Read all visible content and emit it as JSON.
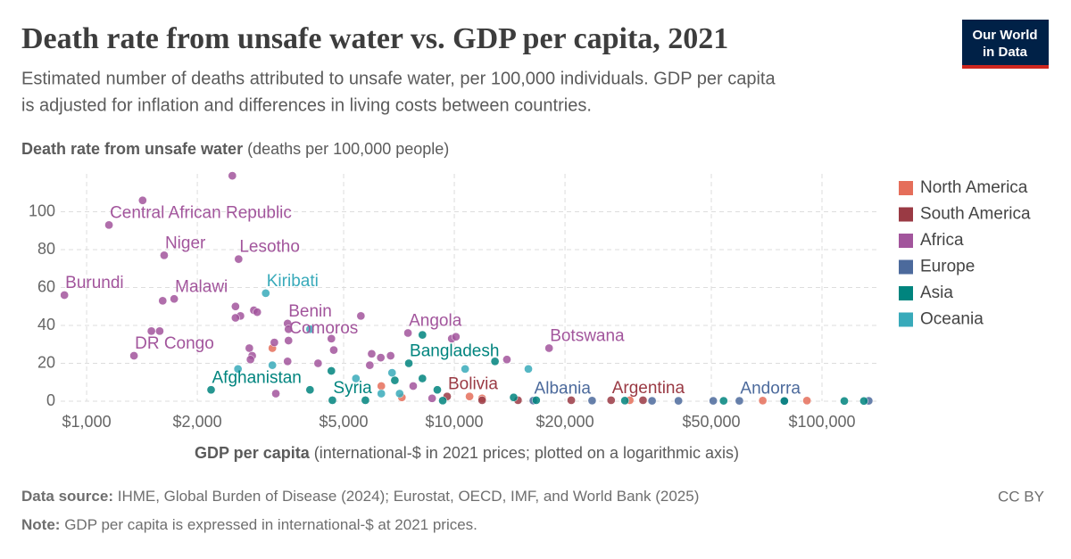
{
  "logo": [
    "Our World",
    "in Data"
  ],
  "chart_data": {
    "type": "scatter",
    "title": "Death rate from unsafe water vs. GDP per capita, 2021",
    "subtitle": [
      "Estimated number of deaths attributed to unsafe water, per 100,000 individuals. GDP per capita",
      "is adjusted for inflation and differences in living costs between countries."
    ],
    "y_label": "Death rate from unsafe water",
    "y_label_unit": "(deaths per 100,000 people)",
    "x_label": "GDP per capita",
    "x_label_unit": "(international-$ in 2021 prices; plotted on a logarithmic axis)",
    "x_log": true,
    "grid": true,
    "legend": "right",
    "xlim": [
      850,
      143000
    ],
    "xticks": [
      {
        "value": 1000,
        "label": "$1,000"
      },
      {
        "value": 2000,
        "label": "$2,000"
      },
      {
        "value": 5000,
        "label": "$5,000"
      },
      {
        "value": 10000,
        "label": "$10,000"
      },
      {
        "value": 20000,
        "label": "$20,000"
      },
      {
        "value": 50000,
        "label": "$50,000"
      },
      {
        "value": 100000,
        "label": "$100,000"
      }
    ],
    "ylim": [
      0,
      120
    ],
    "yticks": [
      0,
      20,
      40,
      60,
      80,
      100
    ],
    "series": [
      {
        "name": "North America",
        "color": "#e56e5a",
        "x": [
          3200,
          6330,
          7200,
          11000,
          11900,
          30000,
          69000,
          91000
        ],
        "values": [
          28,
          8,
          2,
          2.5,
          1.5,
          0.5,
          0.3,
          0.3
        ],
        "labels": [
          null,
          null,
          null,
          null,
          null,
          null,
          null,
          null
        ]
      },
      {
        "name": "South America",
        "color": "#9a3a44",
        "x": [
          9560,
          11900,
          14900,
          20800,
          26700,
          32600
        ],
        "values": [
          2.5,
          0.5,
          0.5,
          0.5,
          0.5,
          0.5
        ],
        "labels": [
          "Bolivia",
          null,
          null,
          null,
          "Argentina",
          null
        ]
      },
      {
        "name": "Africa",
        "color": "#a2559c",
        "x": [
          870,
          1150,
          1420,
          1625,
          2490,
          2590,
          1730,
          1610,
          1500,
          1580,
          1345,
          2850,
          2540,
          2620,
          2540,
          2910,
          3520,
          3540,
          5570,
          2770,
          2820,
          2790,
          3240,
          3520,
          4260,
          3540,
          4630,
          4700,
          5960,
          6310,
          6710,
          5890,
          7480,
          9840,
          10100,
          7730,
          8700,
          18100,
          13900,
          3270
        ],
        "values": [
          56,
          93,
          106,
          77,
          119,
          75,
          54,
          53,
          37,
          37,
          24,
          48,
          50,
          45,
          44,
          47,
          41,
          38,
          45,
          28,
          24,
          22,
          31,
          21,
          20,
          32,
          33,
          27,
          25,
          23,
          24,
          19,
          36,
          33,
          34,
          8,
          1.5,
          28,
          22,
          4
        ],
        "labels": [
          "Burundi",
          "Central African Republic",
          null,
          "Niger",
          null,
          "Lesotho",
          "Malawi",
          null,
          null,
          null,
          "DR Congo",
          null,
          null,
          null,
          null,
          null,
          "Benin",
          null,
          null,
          null,
          null,
          null,
          null,
          null,
          null,
          "Comoros",
          null,
          null,
          null,
          null,
          null,
          null,
          "Angola",
          null,
          null,
          null,
          null,
          "Botswana",
          null,
          null
        ]
      },
      {
        "name": "Europe",
        "color": "#4c6a9c",
        "x": [
          16400,
          23700,
          34500,
          59600,
          40700,
          50600,
          79000,
          134000
        ],
        "values": [
          0.3,
          0.3,
          0.2,
          0.2,
          0.2,
          0.2,
          0.2,
          0.2
        ],
        "labels": [
          "Albania",
          null,
          null,
          "Andorra",
          null,
          null,
          null,
          null
        ]
      },
      {
        "name": "Asia",
        "color": "#00847e",
        "x": [
          2180,
          4050,
          4660,
          5730,
          4630,
          8190,
          7520,
          8990,
          8190,
          6890,
          12900,
          9300,
          16700,
          29100,
          54000,
          79000,
          115000,
          130000,
          14500
        ],
        "values": [
          6,
          6,
          0.5,
          0.5,
          16,
          35,
          20,
          6,
          12,
          11,
          21,
          0.3,
          0.5,
          0.3,
          0.2,
          0.1,
          0.1,
          0.1,
          2
        ],
        "labels": [
          "Afghanistan",
          null,
          "Syria",
          null,
          null,
          null,
          "Bangladesh",
          null,
          null,
          null,
          null,
          null,
          null,
          null,
          null,
          null,
          null,
          null,
          null
        ]
      },
      {
        "name": "Oceania",
        "color": "#38aaba",
        "x": [
          3070,
          4050,
          3200,
          2580,
          6770,
          6330,
          7100,
          10700,
          15900,
          5400
        ],
        "values": [
          57,
          38,
          19,
          17,
          15,
          4,
          4,
          17,
          17,
          12
        ],
        "labels": [
          "Kiribati",
          null,
          null,
          null,
          null,
          null,
          null,
          null,
          null,
          null
        ]
      }
    ],
    "source_label": "Data source:",
    "source": "IHME, Global Burden of Disease (2024); Eurostat, OECD, IMF, and World Bank (2025)",
    "license": "CC BY",
    "note_label": "Note:",
    "note": "GDP per capita is expressed in international-$ at 2021 prices."
  }
}
